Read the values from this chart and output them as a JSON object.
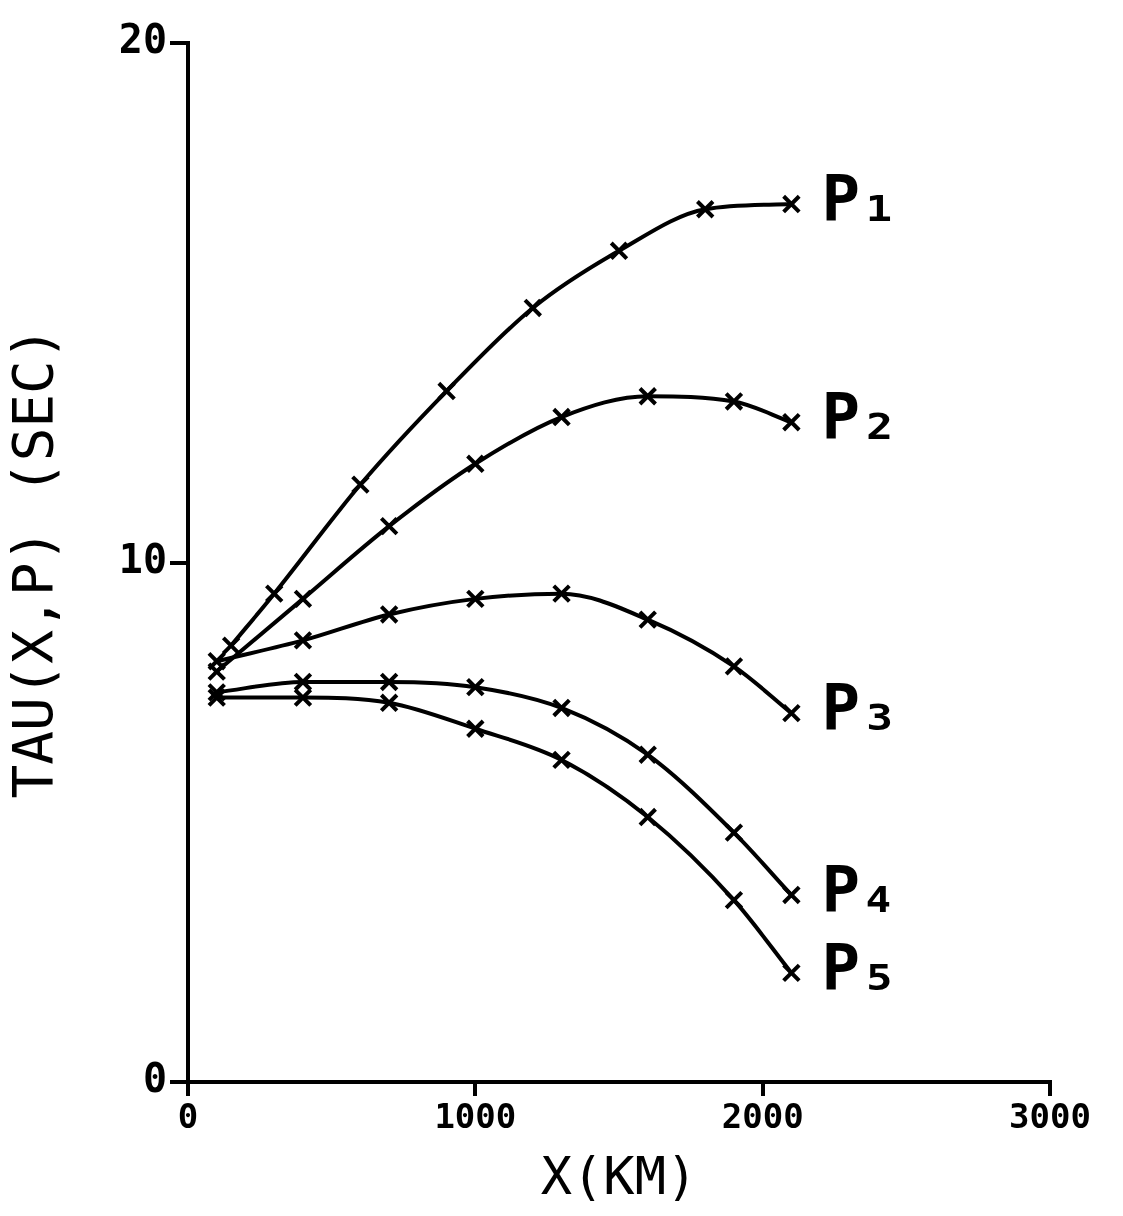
{
  "chart_data": {
    "type": "line",
    "xlabel": "X(KM)",
    "ylabel": "TAU(X,P) (SEC)",
    "xlim": [
      0,
      3000
    ],
    "xticks": [
      0,
      1000,
      2000,
      3000
    ],
    "ylim": [
      0,
      20
    ],
    "yticks": [
      0,
      10,
      20
    ],
    "grid": false,
    "legend": false,
    "marker": "cross",
    "line_style": "solid",
    "series": [
      {
        "name": "P₁",
        "color": "#000000",
        "x": [
          150,
          300,
          600,
          900,
          1200,
          1500,
          1800,
          2100
        ],
        "values": [
          8.4,
          9.4,
          11.5,
          13.3,
          14.9,
          16.0,
          16.8,
          16.9
        ]
      },
      {
        "name": "P₂",
        "color": "#000000",
        "x": [
          100,
          400,
          700,
          1000,
          1300,
          1600,
          1900,
          2100
        ],
        "values": [
          7.9,
          9.3,
          10.7,
          11.9,
          12.8,
          13.2,
          13.1,
          12.7
        ]
      },
      {
        "name": "P₃",
        "color": "#000000",
        "x": [
          100,
          400,
          700,
          1000,
          1300,
          1600,
          1900,
          2100
        ],
        "values": [
          8.1,
          8.5,
          9.0,
          9.3,
          9.4,
          8.9,
          8.0,
          7.1
        ]
      },
      {
        "name": "P₄",
        "color": "#000000",
        "x": [
          100,
          400,
          700,
          1000,
          1300,
          1600,
          1900,
          2100
        ],
        "values": [
          7.5,
          7.7,
          7.7,
          7.6,
          7.2,
          6.3,
          4.8,
          3.6
        ]
      },
      {
        "name": "P₅",
        "color": "#000000",
        "x": [
          100,
          400,
          700,
          1000,
          1300,
          1600,
          1900,
          2100
        ],
        "values": [
          7.4,
          7.4,
          7.3,
          6.8,
          6.2,
          5.1,
          3.5,
          2.1
        ]
      }
    ]
  }
}
